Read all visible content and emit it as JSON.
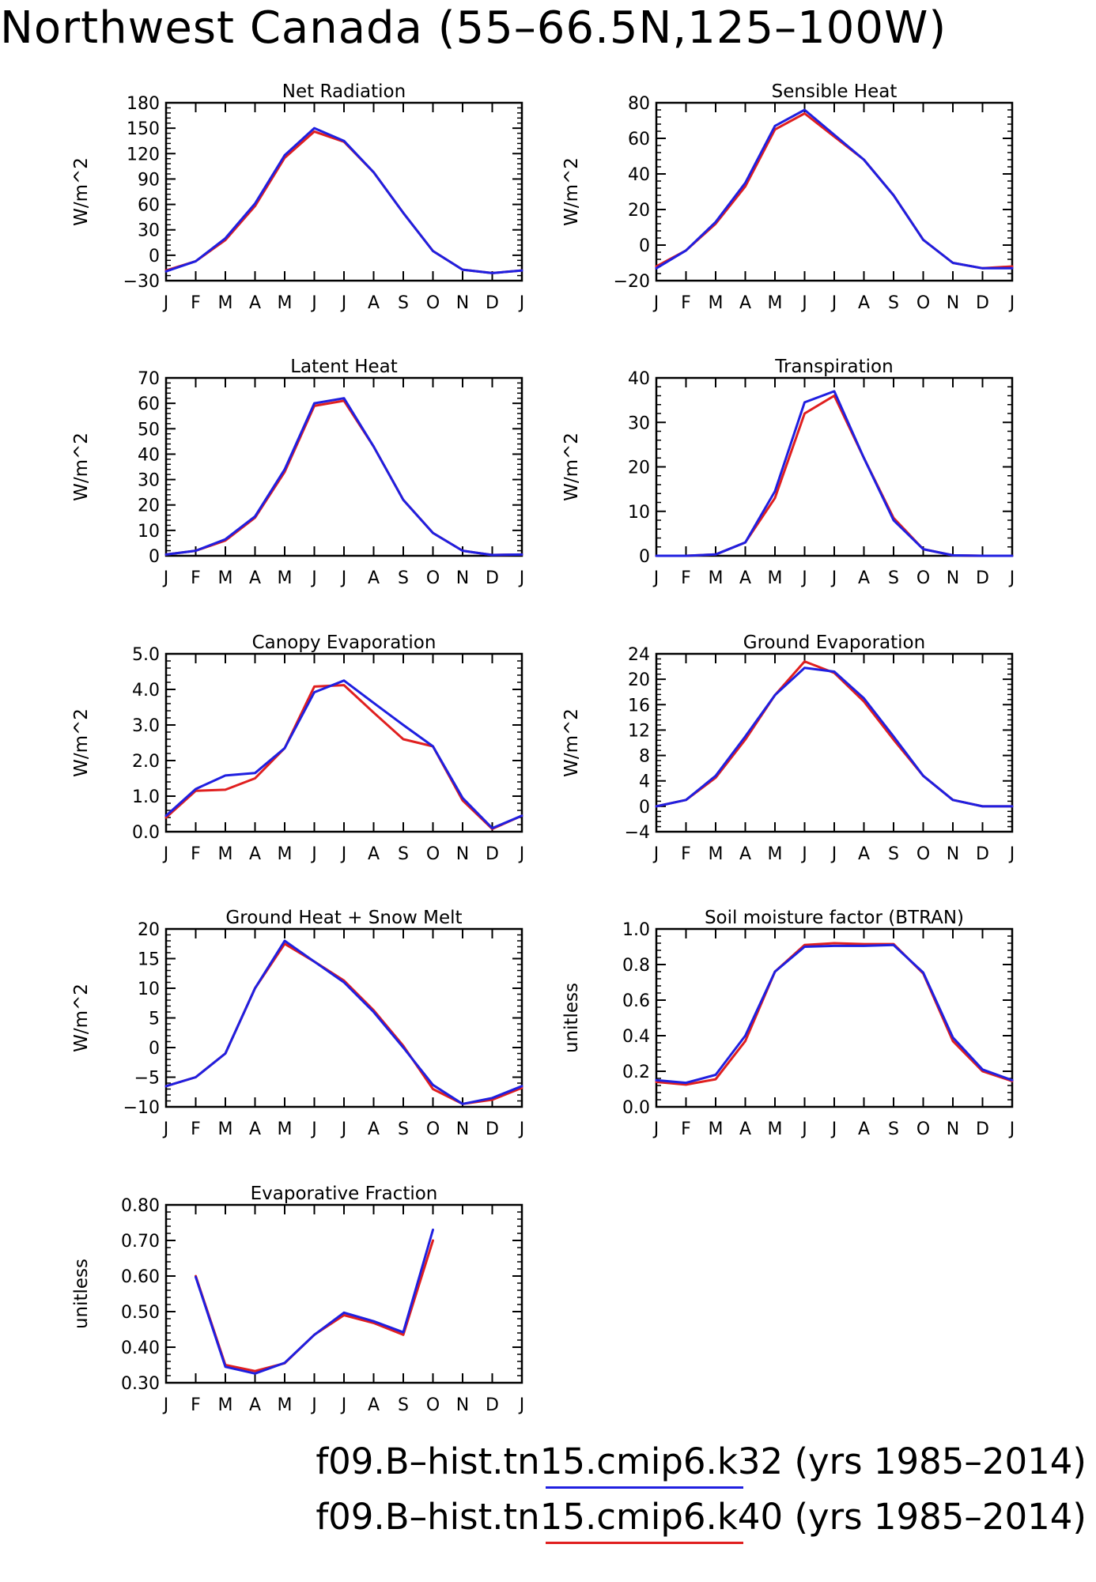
{
  "page": {
    "title": "Northwest Canada (55–66.5N,125–100W)"
  },
  "legend": [
    {
      "label": "f09.B–hist.tn15.cmip6.k32 (yrs 1985–2014)",
      "color": "#1f1fe0"
    },
    {
      "label": "f09.B–hist.tn15.cmip6.k40 (yrs 1985–2014)",
      "color": "#e01f1f"
    }
  ],
  "series_colors": {
    "k32": "#1f1fe0",
    "k40": "#e01f1f"
  },
  "chart_data": [
    {
      "type": "line",
      "title": "Net Radiation",
      "ylabel": "W/m^2",
      "categories": [
        "J",
        "F",
        "M",
        "A",
        "M",
        "J",
        "J",
        "A",
        "S",
        "O",
        "N",
        "D",
        "J"
      ],
      "ylim": [
        -30,
        180
      ],
      "yticks": [
        -30,
        0,
        30,
        60,
        90,
        120,
        150,
        180
      ],
      "ytick_decimals": 0,
      "series": [
        {
          "key": "k40",
          "values": [
            -18,
            -7,
            18,
            58,
            115,
            146,
            134,
            98,
            50,
            5,
            -17,
            -21,
            -18
          ]
        },
        {
          "key": "k32",
          "values": [
            -19,
            -7,
            20,
            61,
            118,
            150,
            135,
            98,
            50,
            5,
            -17,
            -21,
            -18
          ]
        }
      ]
    },
    {
      "type": "line",
      "title": "Sensible Heat",
      "ylabel": "W/m^2",
      "categories": [
        "J",
        "F",
        "M",
        "A",
        "M",
        "J",
        "J",
        "A",
        "S",
        "O",
        "N",
        "D",
        "J"
      ],
      "ylim": [
        -20,
        80
      ],
      "yticks": [
        -20,
        0,
        20,
        40,
        60,
        80
      ],
      "ytick_decimals": 0,
      "series": [
        {
          "key": "k40",
          "values": [
            -12,
            -3,
            12,
            33,
            65,
            74,
            61,
            48,
            28,
            3,
            -10,
            -13,
            -12
          ]
        },
        {
          "key": "k32",
          "values": [
            -13,
            -3,
            13,
            35,
            67,
            76,
            62,
            48,
            28,
            3,
            -10,
            -13,
            -13
          ]
        }
      ]
    },
    {
      "type": "line",
      "title": "Latent Heat",
      "ylabel": "W/m^2",
      "categories": [
        "J",
        "F",
        "M",
        "A",
        "M",
        "J",
        "J",
        "A",
        "S",
        "O",
        "N",
        "D",
        "J"
      ],
      "ylim": [
        0,
        70
      ],
      "yticks": [
        0,
        10,
        20,
        30,
        40,
        50,
        60,
        70
      ],
      "ytick_decimals": 0,
      "series": [
        {
          "key": "k40",
          "values": [
            0.5,
            2,
            6,
            15,
            33,
            59,
            61,
            43,
            22,
            9,
            2,
            0.3,
            0.5
          ]
        },
        {
          "key": "k32",
          "values": [
            0.5,
            2,
            6.5,
            15.5,
            34,
            60,
            62,
            43,
            22,
            9,
            2,
            0.3,
            0.5
          ]
        }
      ]
    },
    {
      "type": "line",
      "title": "Transpiration",
      "ylabel": "W/m^2",
      "categories": [
        "J",
        "F",
        "M",
        "A",
        "M",
        "J",
        "J",
        "A",
        "S",
        "O",
        "N",
        "D",
        "J"
      ],
      "ylim": [
        0,
        40
      ],
      "yticks": [
        0,
        10,
        20,
        30,
        40
      ],
      "ytick_decimals": 0,
      "series": [
        {
          "key": "k40",
          "values": [
            0,
            0,
            0.3,
            3,
            13,
            32,
            36,
            22,
            8.5,
            1.5,
            0.1,
            0,
            0
          ]
        },
        {
          "key": "k32",
          "values": [
            0,
            0,
            0.3,
            3,
            14.5,
            34.5,
            37,
            22,
            8,
            1.5,
            0.1,
            0,
            0
          ]
        }
      ]
    },
    {
      "type": "line",
      "title": "Canopy Evaporation",
      "ylabel": "W/m^2",
      "categories": [
        "J",
        "F",
        "M",
        "A",
        "M",
        "J",
        "J",
        "A",
        "S",
        "O",
        "N",
        "D",
        "J"
      ],
      "ylim": [
        0,
        5
      ],
      "yticks": [
        0,
        1,
        2,
        3,
        4,
        5
      ],
      "ytick_decimals": 1,
      "series": [
        {
          "key": "k40",
          "values": [
            0.4,
            1.15,
            1.18,
            1.5,
            2.35,
            4.08,
            4.12,
            3.35,
            2.6,
            2.4,
            0.88,
            0.08,
            0.45
          ]
        },
        {
          "key": "k32",
          "values": [
            0.45,
            1.2,
            1.58,
            1.65,
            2.35,
            3.92,
            4.25,
            3.62,
            3.0,
            2.4,
            0.95,
            0.1,
            0.45
          ]
        }
      ]
    },
    {
      "type": "line",
      "title": "Ground Evaporation",
      "ylabel": "W/m^2",
      "categories": [
        "J",
        "F",
        "M",
        "A",
        "M",
        "J",
        "J",
        "A",
        "S",
        "O",
        "N",
        "D",
        "J"
      ],
      "ylim": [
        -4,
        24
      ],
      "yticks": [
        -4,
        0,
        4,
        8,
        12,
        16,
        20,
        24
      ],
      "ytick_decimals": 0,
      "series": [
        {
          "key": "k40",
          "values": [
            0,
            1,
            4.5,
            10.5,
            17.5,
            22.8,
            21,
            16.5,
            10.5,
            4.8,
            1,
            0,
            0
          ]
        },
        {
          "key": "k32",
          "values": [
            0,
            1,
            4.8,
            11,
            17.5,
            21.8,
            21.2,
            17,
            11,
            4.8,
            1,
            0,
            0
          ]
        }
      ]
    },
    {
      "type": "line",
      "title": "Ground Heat + Snow Melt",
      "ylabel": "W/m^2",
      "categories": [
        "J",
        "F",
        "M",
        "A",
        "M",
        "J",
        "J",
        "A",
        "S",
        "O",
        "N",
        "D",
        "J"
      ],
      "ylim": [
        -10,
        20
      ],
      "yticks": [
        -10,
        -5,
        0,
        5,
        10,
        15,
        20
      ],
      "ytick_decimals": 0,
      "series": [
        {
          "key": "k40",
          "values": [
            -6.5,
            -5,
            -1,
            10,
            17.5,
            14.5,
            11.3,
            6.3,
            0.3,
            -7,
            -9.5,
            -8.8,
            -6.8
          ]
        },
        {
          "key": "k32",
          "values": [
            -6.5,
            -5,
            -1,
            10,
            18,
            14.5,
            11,
            6,
            0,
            -6.3,
            -9.5,
            -8.5,
            -6.5
          ]
        }
      ]
    },
    {
      "type": "line",
      "title": "Soil moisture factor (BTRAN)",
      "ylabel": "unitless",
      "categories": [
        "J",
        "F",
        "M",
        "A",
        "M",
        "J",
        "J",
        "A",
        "S",
        "O",
        "N",
        "D",
        "J"
      ],
      "ylim": [
        0,
        1
      ],
      "yticks": [
        0,
        0.2,
        0.4,
        0.6,
        0.8,
        1.0
      ],
      "ytick_decimals": 1,
      "series": [
        {
          "key": "k40",
          "values": [
            0.14,
            0.125,
            0.155,
            0.37,
            0.76,
            0.91,
            0.92,
            0.915,
            0.915,
            0.75,
            0.37,
            0.2,
            0.145
          ]
        },
        {
          "key": "k32",
          "values": [
            0.15,
            0.135,
            0.18,
            0.4,
            0.76,
            0.9,
            0.905,
            0.905,
            0.91,
            0.755,
            0.39,
            0.21,
            0.15
          ]
        }
      ]
    },
    {
      "type": "line",
      "title": "Evaporative Fraction",
      "ylabel": "unitless",
      "categories": [
        "J",
        "F",
        "M",
        "A",
        "M",
        "J",
        "J",
        "A",
        "S",
        "O",
        "N",
        "D",
        "J"
      ],
      "ylim": [
        0.3,
        0.8
      ],
      "yticks": [
        0.3,
        0.4,
        0.5,
        0.6,
        0.7,
        0.8
      ],
      "ytick_decimals": 2,
      "series": [
        {
          "key": "k40",
          "values": [
            null,
            0.6,
            0.35,
            0.333,
            0.355,
            0.435,
            0.49,
            0.468,
            0.435,
            0.7,
            null,
            null,
            null
          ]
        },
        {
          "key": "k32",
          "values": [
            null,
            0.597,
            0.345,
            0.326,
            0.356,
            0.435,
            0.497,
            0.473,
            0.442,
            0.73,
            null,
            null,
            null
          ]
        }
      ]
    }
  ]
}
